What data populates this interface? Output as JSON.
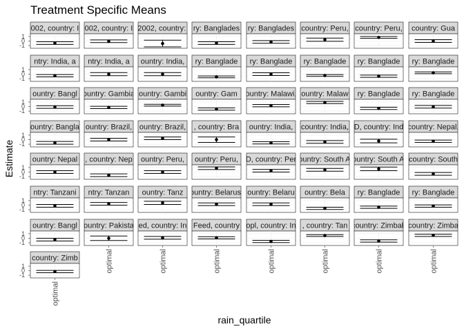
{
  "chart_data": {
    "type": "scatter",
    "title": "Treatment Specific Means",
    "xlabel": "rain_quartile",
    "ylabel": "Estimate",
    "x_tick_label": "optimal",
    "y_tick_labels": [
      "1",
      "0",
      "-1"
    ],
    "ylim": [
      -1.6,
      1.6
    ],
    "grid": true,
    "facet_columns": 8,
    "panels": [
      {
        "strip": "002, country: I",
        "estimate": -0.45,
        "lower": -0.75,
        "upper": -0.15
      },
      {
        "strip": "002, country: I",
        "estimate": -0.05,
        "lower": -0.35,
        "upper": 0.25
      },
      {
        "strip": "-2002, country: I",
        "estimate": -0.55,
        "lower": -1.3,
        "upper": 0.2
      },
      {
        "strip": "ry: Banglades",
        "estimate": -0.45,
        "lower": -0.75,
        "upper": -0.15
      },
      {
        "strip": "ry: Banglades",
        "estimate": -0.2,
        "lower": -0.5,
        "upper": 0.1
      },
      {
        "strip": "country: Peru,",
        "estimate": 0.3,
        "lower": -0.05,
        "upper": 0.65
      },
      {
        "strip": "country: Peru,",
        "estimate": 0.8,
        "lower": 0.6,
        "upper": 1.0
      },
      {
        "strip": "country: Gua",
        "estimate": 0.0,
        "lower": -0.3,
        "upper": 0.3
      },
      {
        "strip": "ntry: India, a",
        "estimate": -0.35,
        "lower": -0.6,
        "upper": -0.1
      },
      {
        "strip": "ntry: India, a",
        "estimate": 0.0,
        "lower": -0.35,
        "upper": 0.35
      },
      {
        "strip": "ountry: India,",
        "estimate": 0.0,
        "lower": -0.35,
        "upper": 0.35
      },
      {
        "strip": "ry: Banglade",
        "estimate": -0.6,
        "lower": -0.8,
        "upper": -0.4
      },
      {
        "strip": "ry: Banglade",
        "estimate": 0.0,
        "lower": -0.3,
        "upper": 0.3
      },
      {
        "strip": "ry: Banglade",
        "estimate": -0.3,
        "lower": -0.5,
        "upper": -0.1
      },
      {
        "strip": "ry: Banglade",
        "estimate": -0.45,
        "lower": -0.7,
        "upper": -0.2
      },
      {
        "strip": "ry: Banglade",
        "estimate": 0.3,
        "lower": 0.1,
        "upper": 0.5
      },
      {
        "strip": "ountry: Bangl",
        "estimate": -0.1,
        "lower": -0.4,
        "upper": 0.2
      },
      {
        "strip": "ountry: Gambia",
        "estimate": -0.2,
        "lower": -0.45,
        "upper": 0.05
      },
      {
        "strip": "ountry: Gambi",
        "estimate": 0.3,
        "lower": 0.1,
        "upper": 0.5
      },
      {
        "strip": "ountry: Gam",
        "estimate": -0.55,
        "lower": -0.8,
        "upper": -0.3
      },
      {
        "strip": "ountry: Malawi,",
        "estimate": 0.2,
        "lower": -0.05,
        "upper": 0.45
      },
      {
        "strip": "ountry: Malaw",
        "estimate": 0.9,
        "lower": 0.65,
        "upper": 1.15
      },
      {
        "strip": "ry: Banglade",
        "estimate": -0.4,
        "lower": -0.65,
        "upper": -0.15
      },
      {
        "strip": "ry: Banglade",
        "estimate": -0.05,
        "lower": -0.35,
        "upper": 0.25
      },
      {
        "strip": "ountry: Bangla",
        "estimate": -0.7,
        "lower": -1.0,
        "upper": -0.4
      },
      {
        "strip": "ountry: Brazil,",
        "estimate": 0.0,
        "lower": -0.3,
        "upper": 0.3
      },
      {
        "strip": "ountry: Brazil,",
        "estimate": 0.3,
        "lower": 0.0,
        "upper": 0.6
      },
      {
        "strip": ", country: Bra",
        "estimate": 0.0,
        "lower": -0.6,
        "upper": 0.6
      },
      {
        "strip": "ountry: India,",
        "estimate": -0.7,
        "lower": -0.95,
        "upper": -0.45
      },
      {
        "strip": "country: India,",
        "estimate": -0.5,
        "lower": -0.8,
        "upper": -0.2
      },
      {
        "strip": "D, country: Ind",
        "estimate": -0.3,
        "lower": -0.7,
        "upper": 0.1
      },
      {
        "strip": "country: Nepal,",
        "estimate": -0.35,
        "lower": -0.6,
        "upper": -0.1
      },
      {
        "strip": "ountry: Nepal",
        "estimate": 0.0,
        "lower": -0.3,
        "upper": 0.3
      },
      {
        "strip": ", country: Nep",
        "estimate": -0.7,
        "lower": -1.0,
        "upper": -0.4
      },
      {
        "strip": "ountry: Peru,",
        "estimate": 0.0,
        "lower": -0.3,
        "upper": 0.3
      },
      {
        "strip": "ountry: Peru,",
        "estimate": 0.85,
        "lower": 0.55,
        "upper": 1.15
      },
      {
        "strip": "D, country: Per",
        "estimate": 0.3,
        "lower": 0.0,
        "upper": 0.6
      },
      {
        "strip": "country: South Afr",
        "estimate": 0.5,
        "lower": 0.2,
        "upper": 0.8
      },
      {
        "strip": "country: South Afr",
        "estimate": 0.7,
        "lower": 0.3,
        "upper": 1.1
      },
      {
        "strip": "country: South",
        "estimate": -0.4,
        "lower": -0.7,
        "upper": -0.1
      },
      {
        "strip": "ntry: Tanzani",
        "estimate": -0.15,
        "lower": -0.45,
        "upper": 0.15
      },
      {
        "strip": "ntry: Tanzan",
        "estimate": 0.3,
        "lower": 0.0,
        "upper": 0.6
      },
      {
        "strip": "ountry: Tanz",
        "estimate": 0.5,
        "lower": 0.15,
        "upper": 0.85
      },
      {
        "strip": "ountry: Belarus,",
        "estimate": 0.2,
        "lower": -0.1,
        "upper": 0.5
      },
      {
        "strip": "ountry: Belaru",
        "estimate": 0.2,
        "lower": -0.1,
        "upper": 0.5
      },
      {
        "strip": "ountry: Bela",
        "estimate": -0.7,
        "lower": -0.95,
        "upper": -0.45
      },
      {
        "strip": "ry: Banglade",
        "estimate": -0.45,
        "lower": -0.7,
        "upper": -0.2
      },
      {
        "strip": "ry: Banglade",
        "estimate": -0.2,
        "lower": -0.45,
        "upper": 0.05
      },
      {
        "strip": "ountry: Bangl",
        "estimate": -0.3,
        "lower": -0.6,
        "upper": 0.0
      },
      {
        "strip": "ountry: Pakista",
        "estimate": 0.0,
        "lower": -0.5,
        "upper": 0.5
      },
      {
        "strip": "ed, country: In",
        "estimate": 0.1,
        "lower": -0.2,
        "upper": 0.4
      },
      {
        "strip": "Feed, country",
        "estimate": 0.1,
        "lower": -0.15,
        "upper": 0.35
      },
      {
        "strip": "opl, country: In",
        "estimate": -0.7,
        "lower": -0.95,
        "upper": -0.45
      },
      {
        "strip": ", country: Tan",
        "estimate": 0.6,
        "lower": 0.4,
        "upper": 0.8
      },
      {
        "strip": "country: Zimbab",
        "estimate": -0.6,
        "lower": -0.85,
        "upper": -0.35
      },
      {
        "strip": "country: Zimba",
        "estimate": 0.65,
        "lower": 0.4,
        "upper": 0.9
      },
      {
        "strip": "country: Zimb",
        "estimate": -0.2,
        "lower": -0.45,
        "upper": 0.05
      }
    ]
  }
}
